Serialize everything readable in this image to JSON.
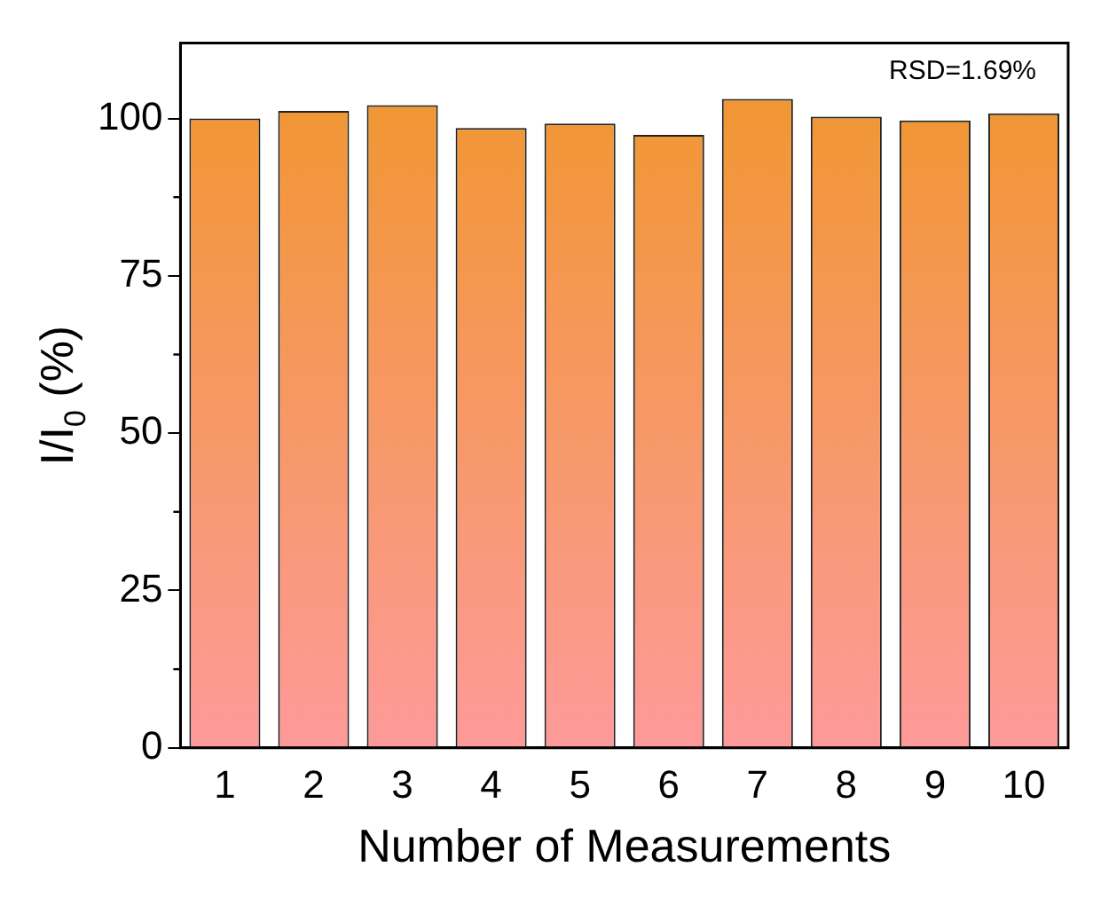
{
  "chart_data": {
    "type": "bar",
    "xlabel": "Number of Measurements",
    "ylabel": "I/I$_{0}$ (%)",
    "categories": [
      "1",
      "2",
      "3",
      "4",
      "5",
      "6",
      "7",
      "8",
      "9",
      "10"
    ],
    "values": [
      100,
      101.2,
      102.1,
      98.5,
      99.2,
      97.4,
      103.1,
      100.3,
      99.7,
      100.8
    ],
    "color": "#f0962a",
    "ylim": [
      0,
      112
    ],
    "yticks": [
      0,
      25,
      50,
      75,
      100
    ],
    "grid": false,
    "legend": false,
    "annotations": [
      "RSD=1.69%"
    ]
  }
}
